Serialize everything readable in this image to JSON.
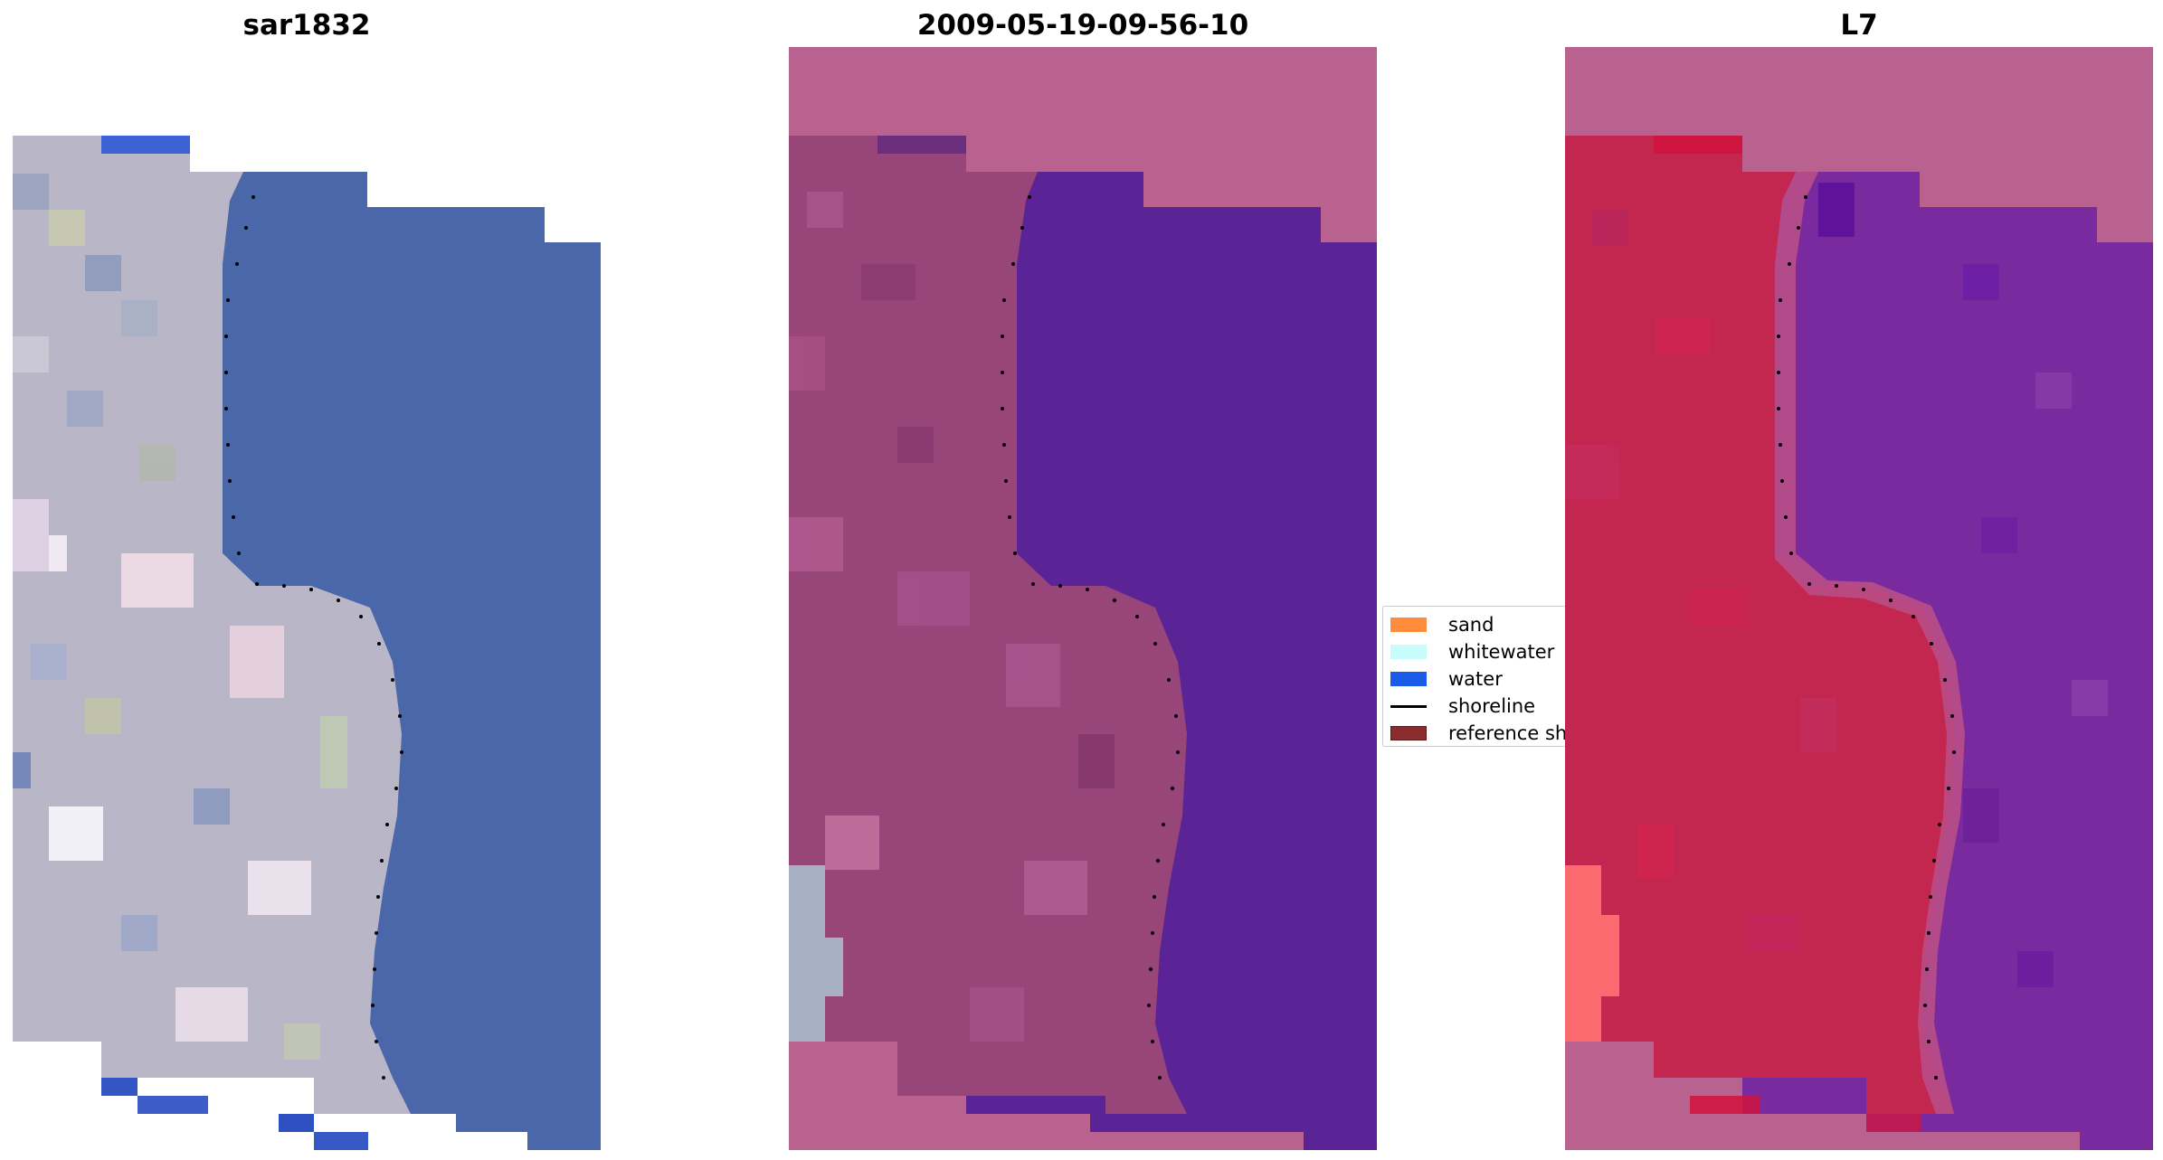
{
  "panels": [
    {
      "title": "sar1832"
    },
    {
      "title": "2009-05-19-09-56-10"
    },
    {
      "title": "L7"
    }
  ],
  "legend": {
    "items": [
      {
        "label": "sand",
        "color": "#ff8c3a",
        "kind": "patch"
      },
      {
        "label": "whitewater",
        "color": "#c8fcfc",
        "kind": "patch"
      },
      {
        "label": "water",
        "color": "#1a5ce8",
        "kind": "patch"
      },
      {
        "label": "shoreline",
        "color": "#000000",
        "kind": "line"
      },
      {
        "label": "reference shoreline",
        "color": "#8b2c2c",
        "kind": "patch"
      }
    ]
  },
  "colors": {
    "land_rgb": "#b9b6c8",
    "water_rgb": "#4a67aa",
    "classified_background": "#b9628f",
    "classified_land": "#98457a",
    "classified_water": "#5a2497",
    "mndwi_land": "#c3264f",
    "mndwi_water": "#7a2a9f",
    "nodata": "#ffffff",
    "shoreline_points": "#000000"
  }
}
